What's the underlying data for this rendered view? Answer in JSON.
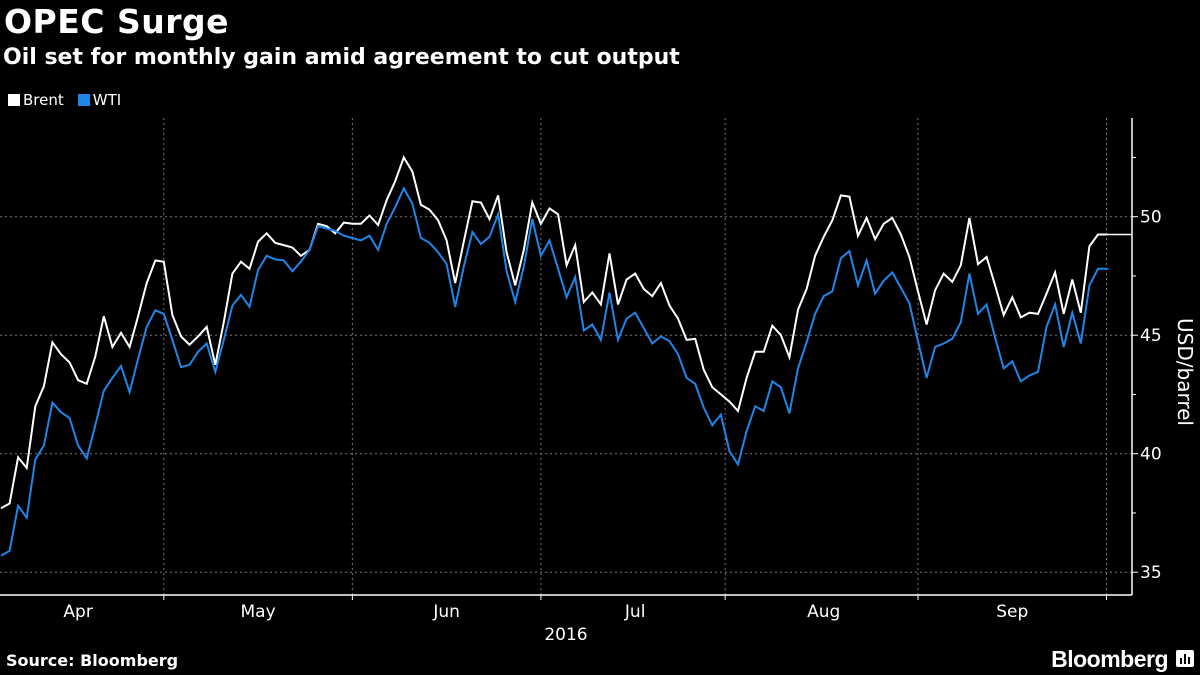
{
  "header": {
    "title": "OPEC Surge",
    "subtitle": "Oil set for monthly gain amid agreement to cut output"
  },
  "footer": {
    "source": "Source: Bloomberg",
    "brand": "Bloomberg"
  },
  "chart_data": {
    "type": "line",
    "title": "OPEC Surge",
    "subtitle": "Oil set for monthly gain amid agreement to cut output",
    "xlabel": "2016",
    "ylabel": "USD/barrel",
    "ylim": [
      34,
      54
    ],
    "y_ticks": [
      35,
      40,
      45,
      50
    ],
    "y_minor_ticks": [
      37.5,
      42.5,
      47.5,
      52.5
    ],
    "x_unit": "trading day index",
    "x_range": [
      0,
      129
    ],
    "month_boundaries": [
      19,
      41,
      63,
      84.5,
      107,
      129
    ],
    "months": [
      {
        "label": "Apr",
        "center": 9
      },
      {
        "label": "May",
        "center": 30
      },
      {
        "label": "Jun",
        "center": 52
      },
      {
        "label": "Jul",
        "center": 74
      },
      {
        "label": "Aug",
        "center": 96
      },
      {
        "label": "Sep",
        "center": 118
      }
    ],
    "grid": true,
    "legend_position": "top-left",
    "series": [
      {
        "name": "Brent",
        "color": "#ffffff",
        "last_value": 49.25,
        "values": [
          37.7,
          37.9,
          39.85,
          39.4,
          42.0,
          42.85,
          44.7,
          44.2,
          43.85,
          43.1,
          42.95,
          44.1,
          45.8,
          44.5,
          45.1,
          44.5,
          45.8,
          47.2,
          48.15,
          48.1,
          45.85,
          44.95,
          44.6,
          44.95,
          45.35,
          43.75,
          45.55,
          47.6,
          48.1,
          47.8,
          48.95,
          49.3,
          48.9,
          48.8,
          48.7,
          48.35,
          48.6,
          49.7,
          49.6,
          49.3,
          49.75,
          49.7,
          49.7,
          50.05,
          49.65,
          50.7,
          51.5,
          52.5,
          51.9,
          50.5,
          50.3,
          49.85,
          49.0,
          47.2,
          48.95,
          50.65,
          50.6,
          49.9,
          50.9,
          48.5,
          47.1,
          48.6,
          50.6,
          49.7,
          50.35,
          50.1,
          47.95,
          48.8,
          46.4,
          46.8,
          46.3,
          48.45,
          46.3,
          47.35,
          47.6,
          46.95,
          46.65,
          47.2,
          46.25,
          45.7,
          44.8,
          44.85,
          43.55,
          42.8,
          42.5,
          42.2,
          41.8,
          43.2,
          44.3,
          44.3,
          45.4,
          45.0,
          44.07,
          46.07,
          46.95,
          48.35,
          49.15,
          49.85,
          50.9,
          50.85,
          49.2,
          49.95,
          49.05,
          49.7,
          49.95,
          49.25,
          48.3,
          46.85,
          45.45,
          46.9,
          47.6,
          47.25,
          47.95,
          49.95,
          48.0,
          48.3,
          47.1,
          45.85,
          46.6,
          45.75,
          45.95,
          45.9,
          46.75,
          47.65,
          45.9,
          47.35,
          45.95,
          48.75,
          49.25,
          49.25
        ]
      },
      {
        "name": "WTI",
        "color": "#1f86e8",
        "last_value": 47.8,
        "values": [
          35.7,
          35.9,
          37.8,
          37.3,
          39.75,
          40.35,
          42.15,
          41.75,
          41.5,
          40.35,
          39.8,
          41.2,
          42.65,
          43.2,
          43.7,
          42.6,
          44.0,
          45.35,
          46.05,
          45.9,
          44.8,
          43.65,
          43.75,
          44.3,
          44.65,
          43.45,
          44.8,
          46.25,
          46.7,
          46.2,
          47.75,
          48.35,
          48.2,
          48.15,
          47.7,
          48.1,
          48.6,
          49.6,
          49.5,
          49.4,
          49.2,
          49.1,
          49.0,
          49.2,
          48.6,
          49.7,
          50.4,
          51.2,
          50.55,
          49.1,
          48.9,
          48.5,
          48.0,
          46.2,
          47.9,
          49.35,
          48.85,
          49.15,
          50.1,
          47.7,
          46.4,
          47.9,
          49.9,
          48.35,
          49.0,
          47.8,
          46.6,
          47.45,
          45.2,
          45.45,
          44.8,
          46.8,
          44.8,
          45.7,
          45.95,
          45.3,
          44.65,
          44.95,
          44.75,
          44.2,
          43.2,
          42.95,
          41.95,
          41.2,
          41.65,
          40.1,
          39.55,
          40.95,
          42.0,
          41.8,
          43.05,
          42.8,
          41.7,
          43.6,
          44.7,
          45.9,
          46.65,
          46.85,
          48.25,
          48.55,
          47.1,
          48.15,
          46.75,
          47.3,
          47.65,
          47.0,
          46.35,
          44.75,
          43.2,
          44.5,
          44.65,
          44.85,
          45.55,
          47.6,
          45.9,
          46.3,
          44.9,
          43.6,
          43.9,
          43.05,
          43.3,
          43.45,
          45.35,
          46.3,
          44.5,
          45.95,
          44.65,
          47.1,
          47.8,
          47.8
        ]
      }
    ]
  }
}
